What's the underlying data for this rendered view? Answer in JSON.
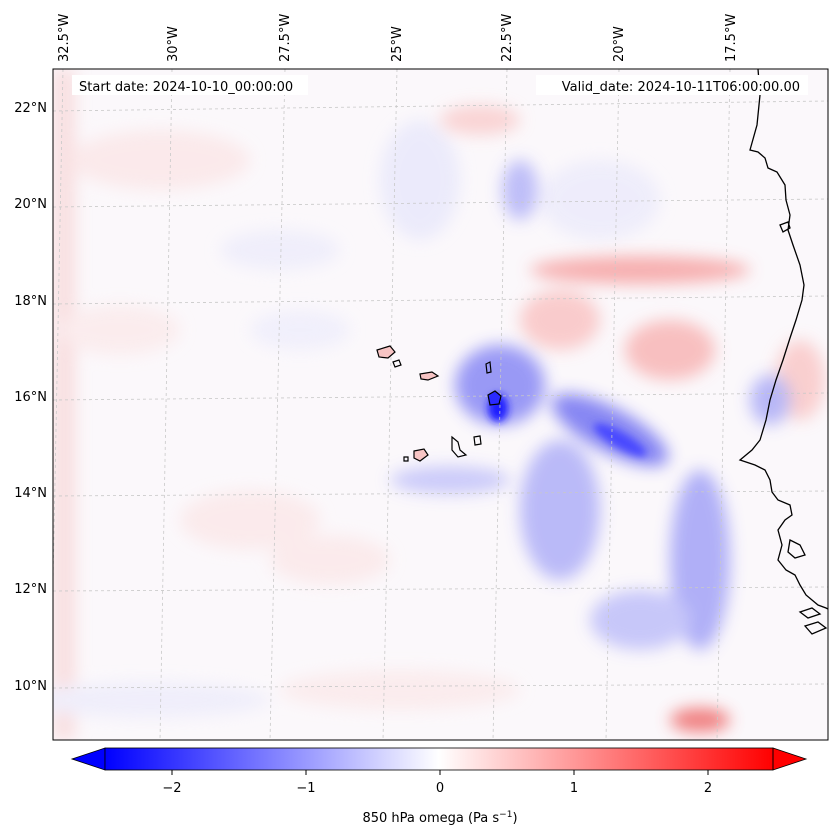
{
  "header": {
    "start_date": "Start date: 2024-10-10_00:00:00",
    "valid_date": "Valid_date: 2024-10-11T06:00:00.00"
  },
  "map": {
    "lon_labels": [
      "32.5°W",
      "30°W",
      "27.5°W",
      "25°W",
      "22.5°W",
      "20°W",
      "17.5°W"
    ],
    "lat_labels": [
      "22°N",
      "20°N",
      "18°N",
      "16°N",
      "14°N",
      "12°N",
      "10°N"
    ],
    "islands": [
      "santo-antao",
      "sao-vicente",
      "sao-nicolau",
      "sal",
      "boa-vista",
      "maio",
      "santiago",
      "fogo",
      "brava"
    ]
  },
  "colorbar": {
    "ticks": [
      "−2",
      "−1",
      "0",
      "1",
      "2"
    ],
    "label": "850 hPa omega (Pa s",
    "label_sup": "−1",
    "label_tail": ")",
    "cmap": "bwr",
    "range": [
      -2.5,
      2.5
    ],
    "extend": "both"
  },
  "colors": {
    "negative": "#0000ff",
    "zero": "#ffffff",
    "positive": "#ff0000",
    "coastline": "#000000",
    "gridline": "#b0b0b0"
  }
}
